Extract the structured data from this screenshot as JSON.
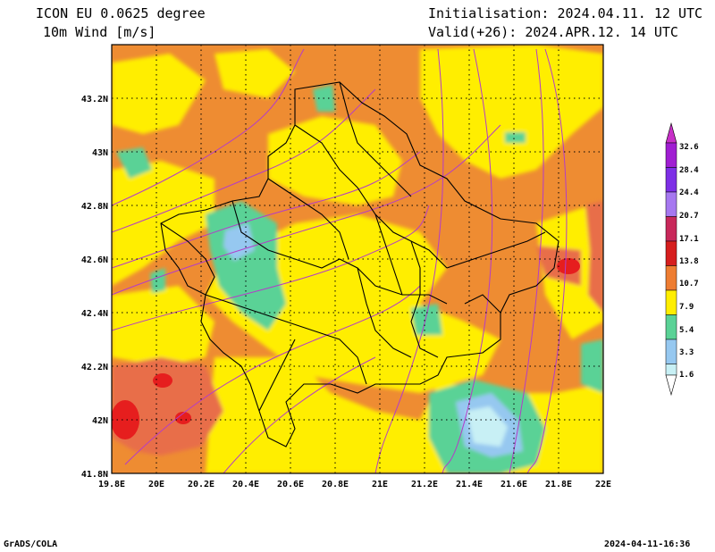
{
  "header": {
    "model": "ICON EU 0.0625 degree",
    "variable": "10m Wind [m/s]",
    "init": "Initialisation: 2024.04.11. 12 UTC",
    "valid": "Valid(+26): 2024.APR.12. 14 UTC"
  },
  "map": {
    "lon_labels": [
      "19.8E",
      "20E",
      "20.2E",
      "20.4E",
      "20.6E",
      "20.8E",
      "21E",
      "21.2E",
      "21.4E",
      "21.6E",
      "21.8E",
      "22E"
    ],
    "lat_labels": [
      "41.8N",
      "42N",
      "42.2N",
      "42.4N",
      "42.6N",
      "42.8N",
      "43N",
      "43.2N"
    ],
    "lon_range": [
      19.8,
      22.0
    ],
    "lat_range": [
      41.8,
      43.4
    ],
    "grid": true
  },
  "legend": {
    "ticks": [
      "32.6",
      "28.4",
      "24.4",
      "20.7",
      "17.1",
      "13.8",
      "10.7",
      "7.9",
      "5.4",
      "3.3",
      "1.6"
    ],
    "colors": [
      "#a01ed2",
      "#7d2fe6",
      "#a678f0",
      "#c8285a",
      "#d61e1e",
      "#ee7d32",
      "#ffee00",
      "#5ad296",
      "#96c8f0",
      "#c8f0f5"
    ],
    "arrow_top_color": "#c830c8",
    "arrow_bottom_color": "#ffffff"
  },
  "footer": {
    "left": "GrADS/COLA",
    "right": "2024-04-11-16:36"
  },
  "colors": {
    "orange": "#ee8c32",
    "yellow": "#ffee00",
    "green": "#5ad296",
    "light_blue": "#96c8f0",
    "pale_cyan": "#c8f0f5",
    "red_orange": "#e86e4a",
    "red": "#e61e1e",
    "streamline": "#b43cc8"
  }
}
